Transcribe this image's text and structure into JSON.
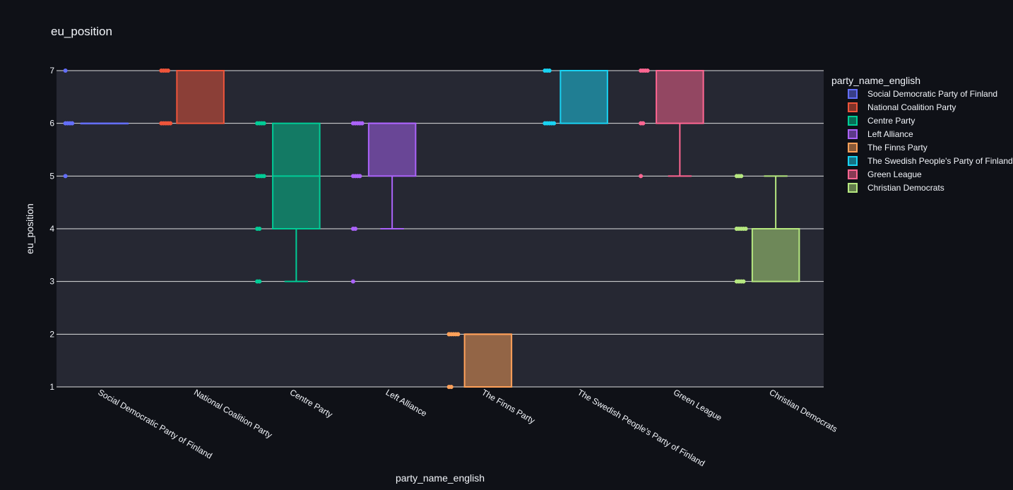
{
  "chart_data": {
    "type": "box",
    "title": "eu_position",
    "xlabel": "party_name_english",
    "ylabel": "eu_position",
    "ylim": [
      1,
      7
    ],
    "y_ticks": [
      1,
      2,
      3,
      4,
      5,
      6,
      7
    ],
    "grid": true,
    "legend_title": "party_name_english",
    "legend_position": "right",
    "categories": [
      "Social Democratic Party of Finland",
      "National Coalition Party",
      "Centre Party",
      "Left Alliance",
      "The Finns Party",
      "The Swedish People's Party of Finland",
      "Green League",
      "Christian Democrats"
    ],
    "series": [
      {
        "name": "Social Democratic Party of Finland",
        "color": "#636efa",
        "box": {
          "q1": 6,
          "median": 6,
          "q3": 6,
          "lower_fence": 6,
          "upper_fence": 6
        },
        "points": [
          7,
          6,
          6,
          6,
          6,
          5
        ]
      },
      {
        "name": "National Coalition Party",
        "color": "#ef553b",
        "box": {
          "q1": 6,
          "median": 7,
          "q3": 7,
          "lower_fence": 6,
          "upper_fence": 7
        },
        "points": [
          7,
          7,
          7,
          7,
          6,
          6,
          6,
          6,
          6
        ]
      },
      {
        "name": "Centre Party",
        "color": "#00cc96",
        "box": {
          "q1": 4,
          "median": 5,
          "q3": 6,
          "lower_fence": 3,
          "upper_fence": 6
        },
        "points": [
          6,
          6,
          6,
          6,
          5,
          5,
          5,
          5,
          4,
          4,
          3,
          3
        ]
      },
      {
        "name": "Left Alliance",
        "color": "#ab63fa",
        "box": {
          "q1": 5,
          "median": 6,
          "q3": 6,
          "lower_fence": 4,
          "upper_fence": 6
        },
        "points": [
          6,
          6,
          6,
          6,
          6,
          5,
          5,
          5,
          5,
          4,
          4,
          3
        ]
      },
      {
        "name": "The Finns Party",
        "color": "#ffa15a",
        "box": {
          "q1": 1,
          "median": 2,
          "q3": 2,
          "lower_fence": 1,
          "upper_fence": 2
        },
        "points": [
          2,
          2,
          2,
          2,
          2,
          2,
          1,
          1
        ]
      },
      {
        "name": "The Swedish People's Party of Finland",
        "color": "#19d3f3",
        "box": {
          "q1": 6,
          "median": 7,
          "q3": 7,
          "lower_fence": 6,
          "upper_fence": 7
        },
        "points": [
          7,
          7,
          7,
          6,
          6,
          6,
          6,
          6
        ]
      },
      {
        "name": "Green League",
        "color": "#ff6692",
        "box": {
          "q1": 6,
          "median": 7,
          "q3": 7,
          "lower_fence": 5,
          "upper_fence": 7
        },
        "points": [
          7,
          7,
          7,
          7,
          6,
          6,
          5
        ]
      },
      {
        "name": "Christian Democrats",
        "color": "#b6e880",
        "box": {
          "q1": 3,
          "median": 4,
          "q3": 4,
          "lower_fence": 3,
          "upper_fence": 5
        },
        "points": [
          5,
          5,
          5,
          4,
          4,
          4,
          4,
          4,
          4,
          3,
          3,
          3,
          3
        ]
      }
    ]
  }
}
